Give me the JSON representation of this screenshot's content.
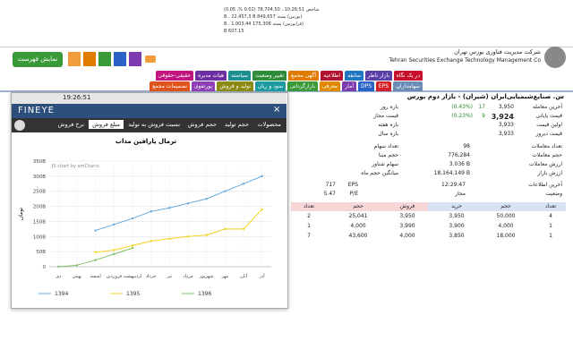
{
  "header": {
    "company_fa": "شرکت مدیریت فناوری بورس تهران",
    "company_en": "Tehran Securities Exchange Technology Management Co",
    "ticker": [
      "شاخص 10:26:51 ، 78,704.50 (0.02 %، 0.05)",
      "(بورس) بسته 849,657 B ، 22,457,3 B",
      "(فرابورس) بسته 175,308 B ، 1,003,44",
      "607.15 B"
    ],
    "menu_button": "نمایش فهرست"
  },
  "tabs_row1": [
    {
      "label": "در یک نگاه",
      "color": "#c8102e"
    },
    {
      "label": "بازار ناظر",
      "color": "#5b3fa8"
    },
    {
      "label": "سابقه",
      "color": "#1f77c4"
    },
    {
      "label": "اطلاعیه",
      "color": "#b0122f"
    },
    {
      "label": "آگهی مجمع",
      "color": "#e07b00"
    },
    {
      "label": "تغییر وضعیت",
      "color": "#2e8b3a"
    },
    {
      "label": "سیاسته",
      "color": "#1b8f8f"
    },
    {
      "label": "هیات مدیره",
      "color": "#6d2ea3"
    },
    {
      "label": "حقیقی-حقوقی",
      "color": "#c0157f"
    }
  ],
  "tabs_row2": [
    {
      "label": "سهامداران",
      "color": "#6c8bb5"
    },
    {
      "label": "EPS",
      "color": "#d42027"
    },
    {
      "label": "DPS",
      "color": "#2a62c7"
    },
    {
      "label": "آمار",
      "color": "#7d3bb0"
    },
    {
      "label": "معرفی",
      "color": "#e08a00"
    },
    {
      "label": "بازارگردانی",
      "color": "#3a9a3a"
    },
    {
      "label": "سود و زیان",
      "color": "#1c9aa0"
    },
    {
      "label": "تولید و فروش",
      "color": "#8a8a10"
    },
    {
      "label": "پورتفوی",
      "color": "#8e3fb5"
    },
    {
      "label": "تصمیمات مجمع",
      "color": "#e0521c"
    }
  ],
  "symbol_title": "س. صنایع‌شیمیایی‌ایران (شیران) - بازار دوم بورس",
  "popup": {
    "time": "19:26:51",
    "logo": "FINEYE",
    "tabs": [
      "محصولات",
      "حجم تولید",
      "حجم فروش",
      "نسبت فروش به تولید",
      "مبلغ فروش",
      "نرخ فروش"
    ],
    "active_tab": "مبلغ فروش"
  },
  "chart_data": {
    "type": "line",
    "title": "ترمال پارافین مذاب",
    "credit": "JS chart by amCharts",
    "y_label": "تومان",
    "categories": [
      "دی",
      "بهمن",
      "اسفند",
      "فروردین",
      "اردیبهشت",
      "خرداد",
      "تیر",
      "مرداد",
      "شهریور",
      "مهر",
      "آبان",
      "آذر"
    ],
    "series": [
      {
        "name": "1394",
        "color": "#67a9dc",
        "values": [
          null,
          null,
          120,
          140,
          160,
          183,
          195,
          210,
          225,
          250,
          275,
          300
        ]
      },
      {
        "name": "1395",
        "color": "#f2d21b",
        "values": [
          null,
          null,
          48,
          55,
          70,
          85,
          93,
          100,
          105,
          125,
          125,
          190
        ]
      },
      {
        "name": "1396",
        "color": "#7fc06a",
        "values": [
          0,
          5,
          22,
          42,
          62,
          null,
          null,
          null,
          null,
          null,
          null,
          null
        ]
      }
    ],
    "ylim": [
      0,
      350
    ],
    "yticks": [
      0,
      {
        "value": 50,
        "label": "50B"
      },
      {
        "value": 100,
        "label": "100B"
      },
      {
        "value": 150,
        "label": "150B"
      },
      {
        "value": 200,
        "label": "200B"
      },
      {
        "value": 250,
        "label": "250B"
      },
      {
        "value": 300,
        "label": "300B"
      },
      {
        "value": 350,
        "label": "350B"
      }
    ],
    "grid": true
  },
  "quote": {
    "block1": [
      {
        "label": "آخرین معامله",
        "value": "3,950",
        "change": "17",
        "percent": "(0.43%)"
      },
      {
        "label": "قیمت پایانی",
        "value": "3,924",
        "change": "9",
        "percent": "(0.23%)"
      },
      {
        "label": "اولین قیمت",
        "value": "3,933"
      },
      {
        "label": "قیمت دیروز",
        "value": "3,933"
      }
    ],
    "block1_left": [
      "بازه روز",
      "قیمت مجاز",
      "بازه هفته",
      "بازه سال"
    ],
    "block2": [
      {
        "label": "تعداد معاملات",
        "value": "98"
      },
      {
        "label": "حجم معاملات",
        "value": "776,284"
      },
      {
        "label": "ارزش معاملات",
        "value": "3.036 B"
      },
      {
        "label": "ارزش بازار",
        "value": "18,164.149 B"
      }
    ],
    "block2_left": [
      "تعداد سهام",
      "حجم مبنا",
      "سهام شناور",
      "میانگین حجم ماه"
    ],
    "block3": [
      {
        "label": "آخرین اطلاعات",
        "value": "12:29:47"
      },
      {
        "label": "وضعیت",
        "value": "مجاز"
      }
    ],
    "block3_left": [
      {
        "label": "EPS",
        "value": "717"
      },
      {
        "label": "P/E",
        "value": "5.47"
      }
    ]
  },
  "orderbook": {
    "headers": [
      "تعداد",
      "حجم",
      "خرید",
      "فروش",
      "حجم",
      "تعداد"
    ],
    "rows": [
      [
        "4",
        "50,000",
        "3,950",
        "3,950",
        "25,041",
        "2"
      ],
      [
        "1",
        "4,000",
        "3,900",
        "3,990",
        "4,000",
        "1"
      ],
      [
        "1",
        "18,000",
        "3,850",
        "4,000",
        "43,600",
        "7"
      ]
    ]
  }
}
